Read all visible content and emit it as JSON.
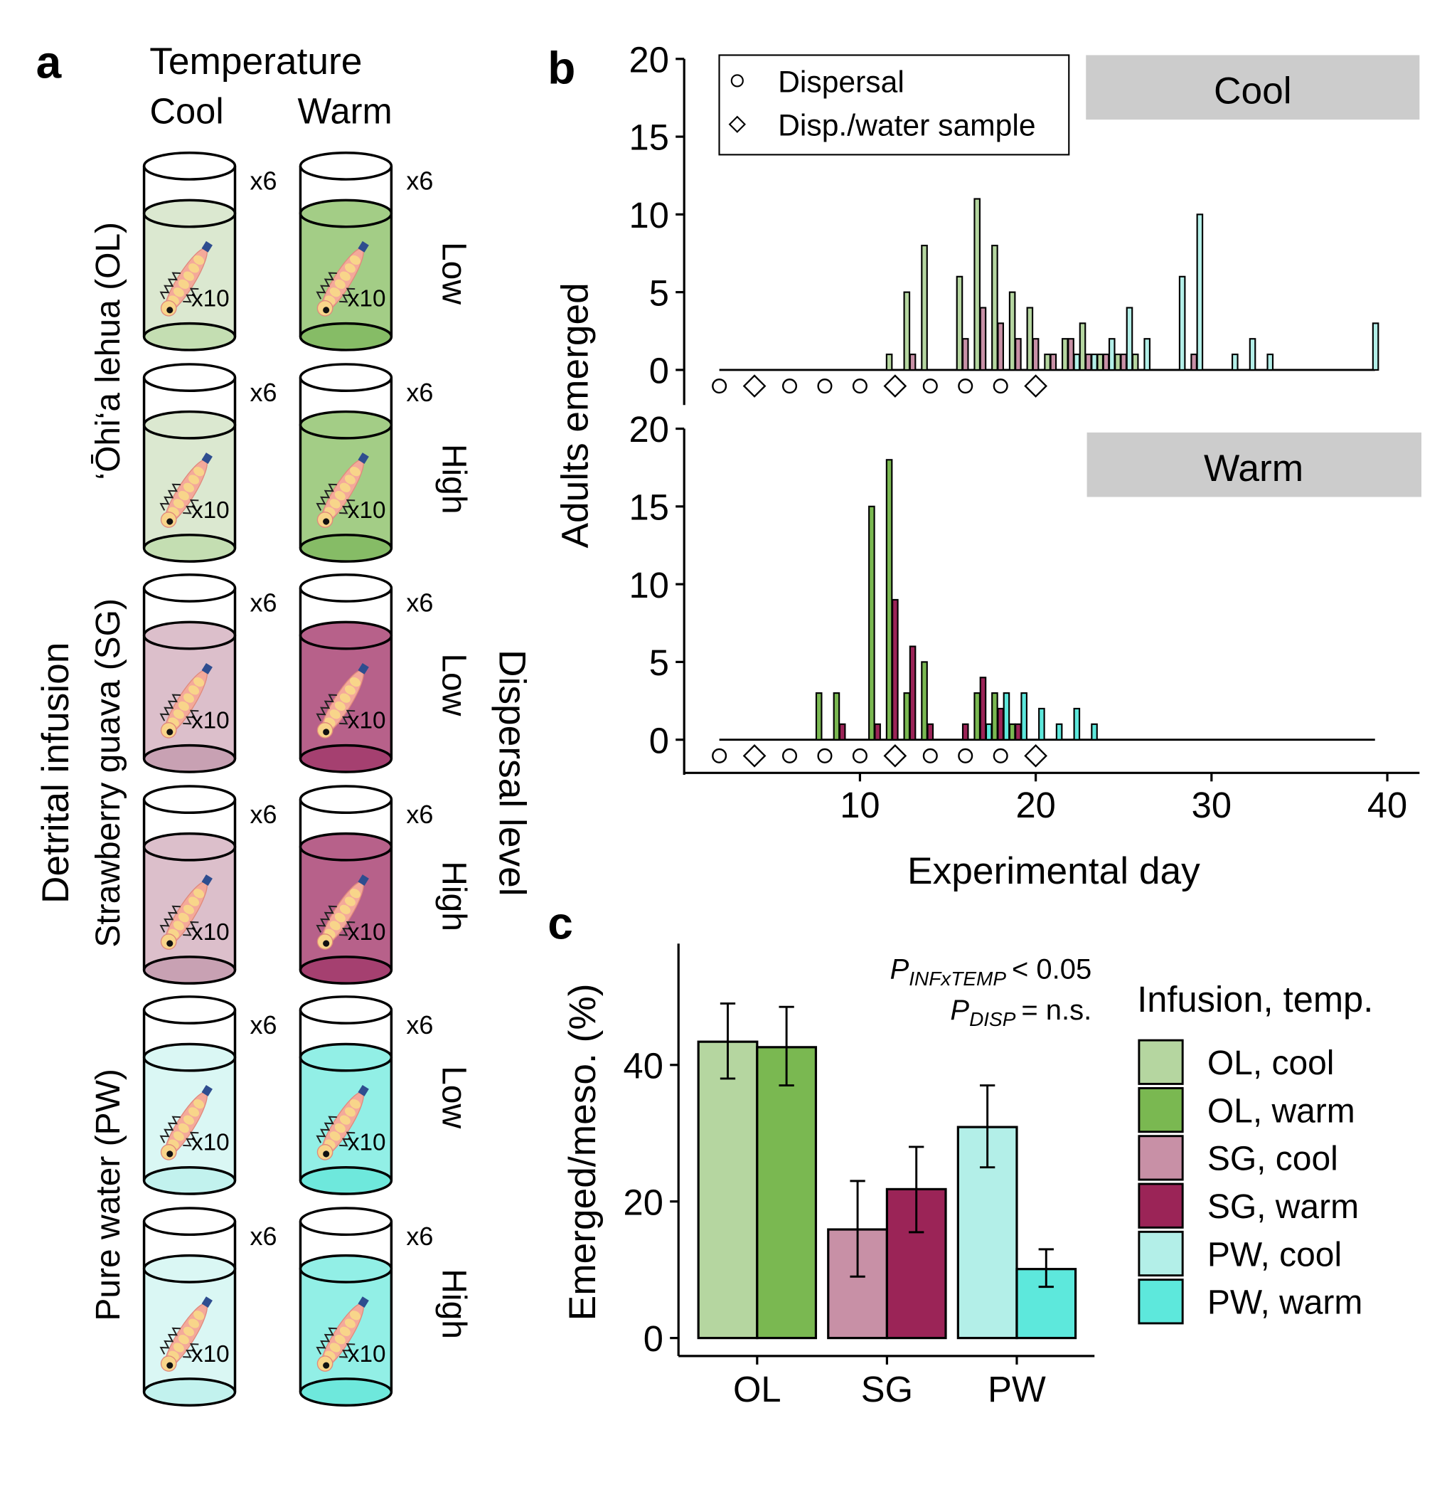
{
  "colors": {
    "ol_cool": "#b5d6a0",
    "ol_warm": "#7ab851",
    "sg_cool": "#c890a6",
    "sg_warm": "#9b2457",
    "pw_cool": "#b3efe8",
    "pw_warm": "#5de8dc",
    "ol_cool_liquid": "#dbe8d0",
    "ol_cool_base": "#c4deb2",
    "ol_warm_liquid": "#a3cd86",
    "ol_warm_base": "#86bc66",
    "sg_cool_liquid": "#dcbfcb",
    "sg_cool_base": "#c8a1b3",
    "sg_warm_liquid": "#b7618a",
    "sg_warm_base": "#a54070",
    "pw_cool_liquid": "#daf7f4",
    "pw_cool_base": "#c2f2ee",
    "pw_warm_liquid": "#92efe6",
    "pw_warm_base": "#6ee8dc",
    "strip": "#cccccc"
  },
  "panel_a": {
    "letter": "a",
    "temperature_title": "Temperature",
    "col_cool": "Cool",
    "col_warm": "Warm",
    "replicates": "x6",
    "larvae": "x10",
    "infusion_title": "Detrital infusion",
    "dispersal_title": "Dispersal level",
    "infusions": [
      {
        "label": "‘Ōhi‘a lehua (OL)",
        "key": "ol"
      },
      {
        "label": "Strawberry guava (SG)",
        "key": "sg"
      },
      {
        "label": "Pure water (PW)",
        "key": "pw"
      }
    ],
    "levels": [
      "Low",
      "High",
      "Low",
      "High",
      "Low",
      "High"
    ]
  },
  "panel_b": {
    "letter": "b",
    "ylabel": "Adults emerged",
    "xlabel": "Experimental day",
    "legend": {
      "dispersal": "Dispersal",
      "sample": "Disp./water sample"
    },
    "strip_cool": "Cool",
    "strip_warm": "Warm"
  },
  "panel_c": {
    "letter": "c",
    "ylabel": "Emerged/meso. (%)",
    "stat1_main": "P",
    "stat1_sub": "INFxTEMP",
    "stat1_rest": "< 0.05",
    "stat2_main": "P",
    "stat2_sub": "DISP",
    "stat2_rest": "= n.s.",
    "legend_title": "Infusion, temp.",
    "legend_items": [
      "OL, cool",
      "OL, warm",
      "SG, cool",
      "SG, warm",
      "PW, cool",
      "PW, warm"
    ]
  },
  "chart_data": [
    {
      "type": "bar",
      "panel": "b-cool",
      "title": "Cool",
      "xlabel": "Experimental day",
      "ylabel": "Adults emerged",
      "xlim": [
        0,
        42
      ],
      "ylim": [
        0,
        20
      ],
      "xticks": [
        10,
        20,
        30,
        40
      ],
      "yticks": [
        0,
        5,
        10,
        15,
        20
      ],
      "series": [
        {
          "key": "ol_cool",
          "points": [
            [
              12,
              1
            ],
            [
              13,
              5
            ],
            [
              14,
              8
            ],
            [
              16,
              6
            ],
            [
              17,
              11
            ],
            [
              18,
              8
            ],
            [
              19,
              5
            ],
            [
              20,
              4
            ],
            [
              21,
              1
            ],
            [
              22,
              2
            ],
            [
              23,
              3
            ],
            [
              24,
              1
            ],
            [
              25,
              1
            ],
            [
              26,
              1
            ]
          ]
        },
        {
          "key": "sg_cool",
          "points": [
            [
              13,
              1
            ],
            [
              16,
              2
            ],
            [
              17,
              4
            ],
            [
              18,
              3
            ],
            [
              19,
              2
            ],
            [
              20,
              2
            ],
            [
              21,
              1
            ],
            [
              22,
              2
            ],
            [
              23,
              1
            ],
            [
              24,
              1
            ],
            [
              25,
              1
            ],
            [
              29,
              1
            ]
          ]
        },
        {
          "key": "pw_cool",
          "points": [
            [
              22,
              1
            ],
            [
              23,
              1
            ],
            [
              24,
              2
            ],
            [
              25,
              4
            ],
            [
              26,
              2
            ],
            [
              28,
              6
            ],
            [
              29,
              10
            ],
            [
              31,
              1
            ],
            [
              32,
              2
            ],
            [
              33,
              1
            ],
            [
              39,
              3
            ]
          ]
        }
      ],
      "dispersal_days": [
        2,
        6,
        8,
        10,
        14,
        16,
        18
      ],
      "sample_days": [
        4,
        12,
        20
      ]
    },
    {
      "type": "bar",
      "panel": "b-warm",
      "title": "Warm",
      "xlabel": "Experimental day",
      "ylabel": "Adults emerged",
      "xlim": [
        0,
        42
      ],
      "ylim": [
        0,
        20
      ],
      "xticks": [
        10,
        20,
        30,
        40
      ],
      "yticks": [
        0,
        5,
        10,
        15,
        20
      ],
      "series": [
        {
          "key": "ol_warm",
          "points": [
            [
              8,
              3
            ],
            [
              9,
              3
            ],
            [
              11,
              15
            ],
            [
              12,
              18
            ],
            [
              13,
              3
            ],
            [
              14,
              5
            ],
            [
              17,
              3
            ],
            [
              18,
              3
            ],
            [
              19,
              1
            ]
          ]
        },
        {
          "key": "sg_warm",
          "points": [
            [
              9,
              1
            ],
            [
              11,
              1
            ],
            [
              12,
              9
            ],
            [
              13,
              6
            ],
            [
              14,
              1
            ],
            [
              16,
              1
            ],
            [
              17,
              4
            ],
            [
              18,
              2
            ],
            [
              19,
              1
            ]
          ]
        },
        {
          "key": "pw_warm",
          "points": [
            [
              17,
              1
            ],
            [
              18,
              3
            ],
            [
              19,
              3
            ],
            [
              20,
              2
            ],
            [
              21,
              1
            ],
            [
              22,
              2
            ],
            [
              23,
              1
            ]
          ]
        }
      ],
      "dispersal_days": [
        2,
        6,
        8,
        10,
        14,
        16,
        18
      ],
      "sample_days": [
        4,
        12,
        20
      ]
    },
    {
      "type": "bar",
      "panel": "c",
      "ylabel": "Emerged/meso. (%)",
      "categories": [
        "OL",
        "SG",
        "PW"
      ],
      "ylim": [
        0,
        57
      ],
      "yticks": [
        0,
        20,
        40
      ],
      "series": [
        {
          "name": "cool",
          "keys": [
            "ol_cool",
            "sg_cool",
            "pw_cool"
          ],
          "values": [
            43.4,
            15.9,
            30.9
          ],
          "err_low": [
            38,
            9,
            25
          ],
          "err_high": [
            49,
            23,
            37
          ]
        },
        {
          "name": "warm",
          "keys": [
            "ol_warm",
            "sg_warm",
            "pw_warm"
          ],
          "values": [
            42.6,
            21.8,
            10.1
          ],
          "err_low": [
            37,
            15.5,
            7.5
          ],
          "err_high": [
            48.5,
            28,
            13
          ]
        }
      ]
    }
  ]
}
